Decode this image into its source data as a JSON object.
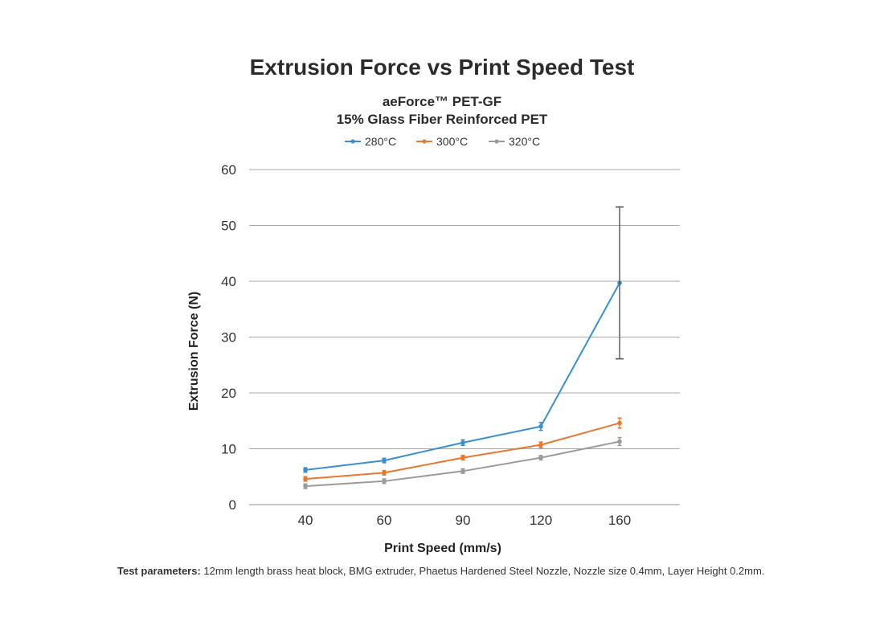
{
  "title": "Extrusion Force vs Print Speed Test",
  "subtitle_line1": "aeForce™ PET-GF",
  "subtitle_line2": "15% Glass Fiber Reinforced PET",
  "footnote": {
    "label": "Test parameters:",
    "text": " 12mm length brass heat block, BMG extruder, Phaetus Hardened Steel Nozzle, Nozzle size 0.4mm, Layer Height 0.2mm."
  },
  "chart_data": {
    "type": "line",
    "title": "Extrusion Force vs Print Speed Test",
    "xlabel": "Print Speed (mm/s)",
    "ylabel": "Extrusion Force (N)",
    "categories": [
      "40",
      "60",
      "90",
      "120",
      "160"
    ],
    "ylim": [
      0,
      60
    ],
    "yticks": [
      0,
      10,
      20,
      30,
      40,
      50,
      60
    ],
    "grid": true,
    "legend_position": "top",
    "series": [
      {
        "name": "280°C",
        "color": "#3a8fd0",
        "values": [
          6.2,
          7.9,
          11.1,
          14.0,
          39.7
        ],
        "error": [
          0.4,
          0.4,
          0.5,
          0.7,
          13.6
        ]
      },
      {
        "name": "300°C",
        "color": "#e8782f",
        "values": [
          4.6,
          5.7,
          8.4,
          10.7,
          14.6
        ],
        "error": [
          0.4,
          0.4,
          0.4,
          0.5,
          0.9
        ]
      },
      {
        "name": "320°C",
        "color": "#9b9b9b",
        "values": [
          3.3,
          4.2,
          6.0,
          8.4,
          11.3
        ],
        "error": [
          0.4,
          0.4,
          0.4,
          0.4,
          0.7
        ]
      }
    ]
  }
}
